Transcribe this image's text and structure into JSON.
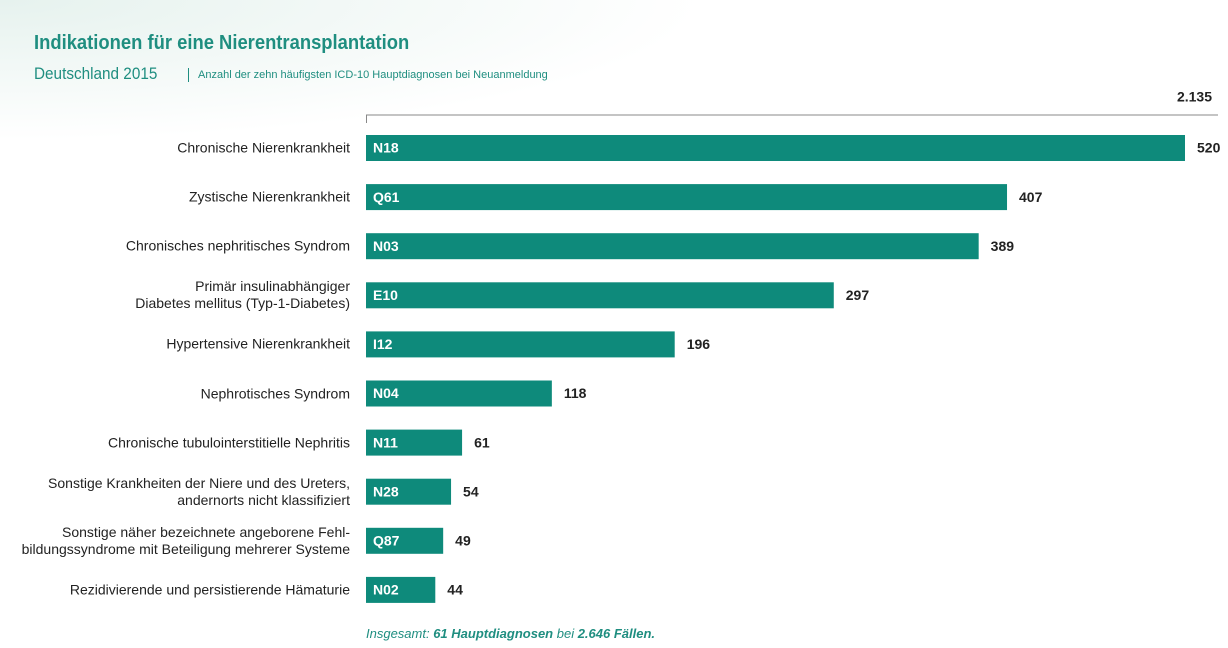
{
  "chart_data": {
    "type": "bar",
    "title": "Indikationen für eine Nierentransplantation",
    "subtitle": "Deutschland 2015",
    "subtitle_note": "Anzahl der zehn häufigsten ICD-10 Hauptdiagnosen bei Neuanmeldung",
    "top10_total": "2.135",
    "categories": [
      "Chronische Nierenkrankheit",
      "Zystische Nierenkrankheit",
      "Chronisches nephritisches Syndrom",
      "Primär insulinabhängiger\nDiabetes mellitus (Typ-1-Diabetes)",
      "Hypertensive Nierenkrankheit",
      "Nephrotisches Syndrom",
      "Chronische tubulointerstitielle Nephritis",
      "Sonstige Krankheiten der Niere und des Ureters,\nandernorts nicht klassifiziert",
      "Sonstige näher bezeichnete angeborene Fehl-\nbildungssyndrome mit Beteiligung mehrerer Systeme",
      "Rezidivierende und persistierende Hämaturie"
    ],
    "codes": [
      "N18",
      "Q61",
      "N03",
      "E10",
      "I12",
      "N04",
      "N11",
      "N28",
      "Q87",
      "N02"
    ],
    "values": [
      520,
      407,
      389,
      297,
      196,
      118,
      61,
      54,
      49,
      44
    ],
    "color": "#0e8a7b",
    "xlim": [
      0,
      520
    ],
    "footer": [
      "Insgesamt: ",
      "61 Hauptdiagnosen",
      " bei ",
      "2.646 Fällen."
    ]
  }
}
